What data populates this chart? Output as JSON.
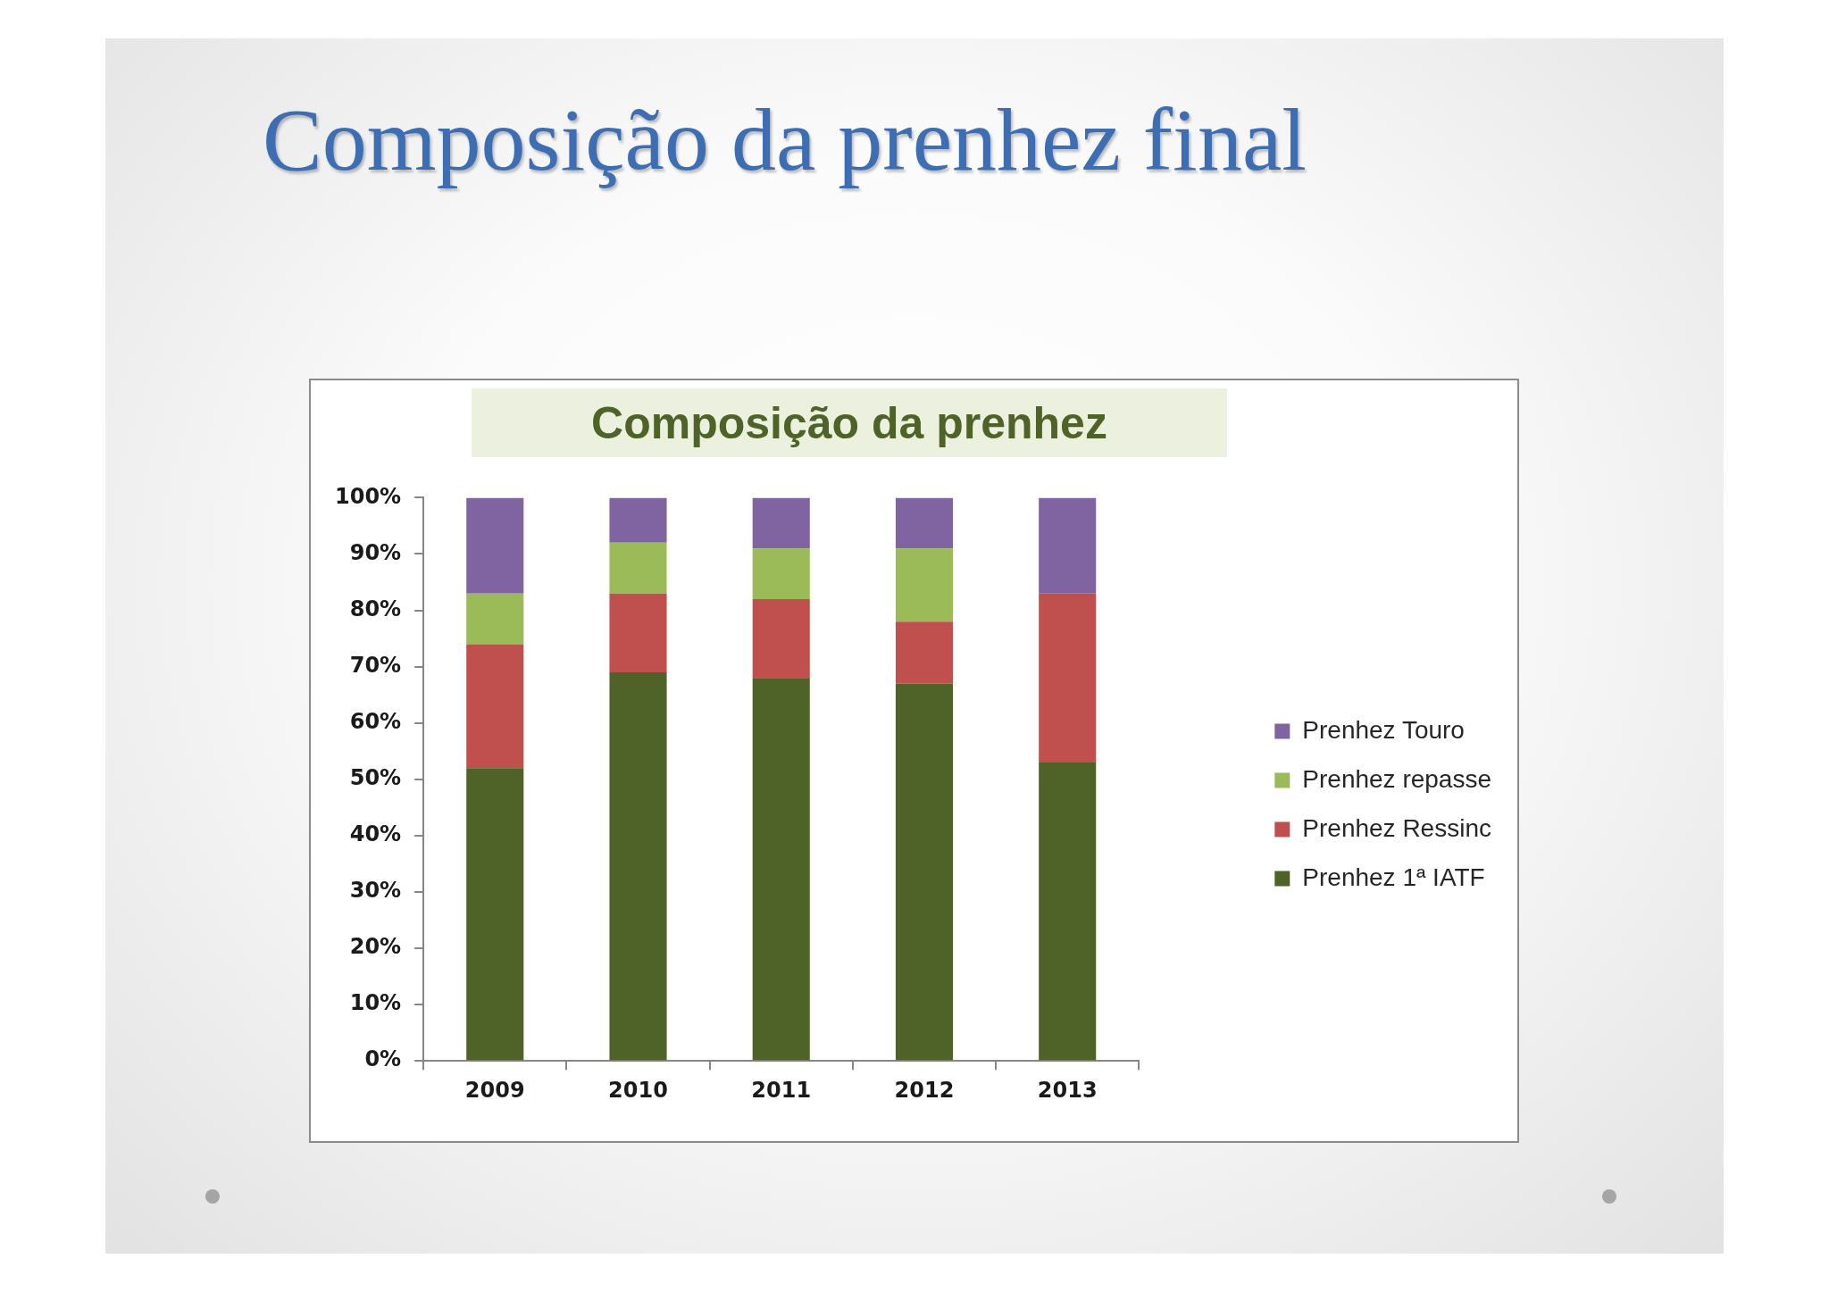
{
  "chart_data": {
    "type": "bar",
    "title": "Composição da prenhez final",
    "subtitle": "Composição da prenhez",
    "categories": [
      "2009",
      "2010",
      "2011",
      "2012",
      "2013"
    ],
    "stacked": true,
    "series": [
      {
        "name": "Prenhez 1ª IATF",
        "color": "#4f6228",
        "values": [
          52,
          69,
          68,
          67,
          53
        ]
      },
      {
        "name": "Prenhez Ressinc",
        "color": "#c0504d",
        "values": [
          22,
          14,
          14,
          11,
          30
        ]
      },
      {
        "name": "Prenhez repasse",
        "color": "#9bbb59",
        "values": [
          9,
          9,
          9,
          13,
          0
        ]
      },
      {
        "name": "Prenhez Touro",
        "color": "#8064a2",
        "values": [
          17,
          8,
          9,
          9,
          17
        ]
      }
    ],
    "ylim": [
      0,
      100
    ],
    "yticks": [
      {
        "value": 0,
        "label": "0%"
      },
      {
        "value": 10,
        "label": "10%"
      },
      {
        "value": 20,
        "label": "20%"
      },
      {
        "value": 30,
        "label": "30%"
      },
      {
        "value": 40,
        "label": "40%"
      },
      {
        "value": 50,
        "label": "50%"
      },
      {
        "value": 60,
        "label": "60%"
      },
      {
        "value": 70,
        "label": "70%"
      },
      {
        "value": 80,
        "label": "80%"
      },
      {
        "value": 90,
        "label": "90%"
      },
      {
        "value": 100,
        "label": "100%"
      }
    ],
    "legend": "right"
  }
}
